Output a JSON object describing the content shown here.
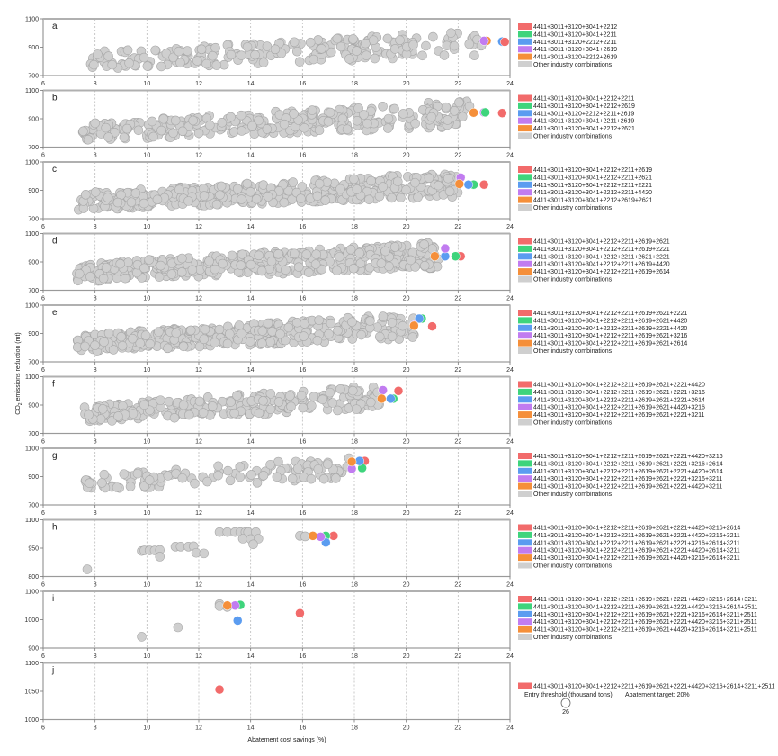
{
  "figure": {
    "xlabel": "Abatement cost savings (%)",
    "ylabel_prefix": "CO",
    "ylabel_sub": "2",
    "ylabel_suffix": " emissions reduction (mt)",
    "size_legend": {
      "title": "Entry threshold (thousand tons)",
      "value_label": "26"
    },
    "target_label": "Abatement target: 20%",
    "other_label": "Other industry combinations"
  },
  "colors": {
    "red": "#f26b6b",
    "green": "#3ed47c",
    "blue": "#5b9cf0",
    "purple": "#c17cf0",
    "orange": "#f58f3a",
    "other": "#cfcfcf"
  },
  "chart_data": [
    {
      "type": "scatter",
      "panel": "a",
      "xlim": [
        6,
        24
      ],
      "ylim": [
        700,
        1100
      ],
      "xticks": [
        6,
        8,
        10,
        12,
        14,
        16,
        18,
        20,
        22,
        24
      ],
      "yticks": [
        700,
        900,
        1100
      ],
      "legend": [
        {
          "label": "4411+3011+3120+3041+2212",
          "color": "red"
        },
        {
          "label": "4411+3011+3120+3041+2211",
          "color": "green"
        },
        {
          "label": "4411+3011+3120+2212+2211",
          "color": "blue"
        },
        {
          "label": "4411+3011+3120+3041+2619",
          "color": "purple"
        },
        {
          "label": "4411+3011+3120+2212+2619",
          "color": "orange"
        }
      ],
      "highlighted": [
        {
          "x": 23.7,
          "y": 940,
          "color": "green"
        },
        {
          "x": 23.1,
          "y": 945,
          "color": "orange"
        },
        {
          "x": 23.7,
          "y": 940,
          "color": "blue"
        },
        {
          "x": 23.0,
          "y": 945,
          "color": "purple"
        },
        {
          "x": 23.8,
          "y": 938,
          "color": "red"
        }
      ],
      "other_cloud": {
        "x_range": [
          7.7,
          23.0
        ],
        "y_range": [
          740,
          1020
        ],
        "count": 220
      }
    },
    {
      "type": "scatter",
      "panel": "b",
      "xlim": [
        6,
        24
      ],
      "ylim": [
        700,
        1100
      ],
      "xticks": [
        6,
        8,
        10,
        12,
        14,
        16,
        18,
        20,
        22,
        24
      ],
      "yticks": [
        700,
        900,
        1100
      ],
      "legend": [
        {
          "label": "4411+3011+3120+3041+2212+2211",
          "color": "red"
        },
        {
          "label": "4411+3011+3120+3041+2212+2619",
          "color": "green"
        },
        {
          "label": "4411+3011+3120+2212+2211+2619",
          "color": "blue"
        },
        {
          "label": "4411+3011+3120+3041+2211+2619",
          "color": "purple"
        },
        {
          "label": "4411+3011+3120+3041+2212+2621",
          "color": "orange"
        }
      ],
      "highlighted": [
        {
          "x": 23.7,
          "y": 940,
          "color": "red"
        },
        {
          "x": 23.0,
          "y": 945,
          "color": "blue"
        },
        {
          "x": 23.0,
          "y": 945,
          "color": "purple"
        },
        {
          "x": 23.05,
          "y": 945,
          "color": "green"
        },
        {
          "x": 22.6,
          "y": 943,
          "color": "orange"
        }
      ],
      "other_cloud": {
        "x_range": [
          7.5,
          22.5
        ],
        "y_range": [
          745,
          1030
        ],
        "count": 320
      }
    },
    {
      "type": "scatter",
      "panel": "c",
      "xlim": [
        6,
        24
      ],
      "ylim": [
        700,
        1100
      ],
      "xticks": [
        6,
        8,
        10,
        12,
        14,
        16,
        18,
        20,
        22,
        24
      ],
      "yticks": [
        700,
        900,
        1100
      ],
      "legend": [
        {
          "label": "4411+3011+3120+3041+2212+2211+2619",
          "color": "red"
        },
        {
          "label": "4411+3011+3120+3041+2212+2211+2621",
          "color": "green"
        },
        {
          "label": "4411+3011+3120+3041+2212+2211+2221",
          "color": "blue"
        },
        {
          "label": "4411+3011+3120+3041+2212+2211+4420",
          "color": "purple"
        },
        {
          "label": "4411+3011+3120+3041+2212+2619+2621",
          "color": "orange"
        }
      ],
      "highlighted": [
        {
          "x": 23.0,
          "y": 940,
          "color": "red"
        },
        {
          "x": 22.6,
          "y": 940,
          "color": "green"
        },
        {
          "x": 22.4,
          "y": 940,
          "color": "blue"
        },
        {
          "x": 22.1,
          "y": 990,
          "color": "purple"
        },
        {
          "x": 22.05,
          "y": 945,
          "color": "orange"
        }
      ],
      "other_cloud": {
        "x_range": [
          7.3,
          22.0
        ],
        "y_range": [
          760,
          1030
        ],
        "count": 420
      }
    },
    {
      "type": "scatter",
      "panel": "d",
      "xlim": [
        6,
        24
      ],
      "ylim": [
        700,
        1100
      ],
      "xticks": [
        6,
        8,
        10,
        12,
        14,
        16,
        18,
        20,
        22,
        24
      ],
      "yticks": [
        700,
        900,
        1100
      ],
      "legend": [
        {
          "label": "4411+3011+3120+3041+2212+2211+2619+2621",
          "color": "red"
        },
        {
          "label": "4411+3011+3120+3041+2212+2211+2619+2221",
          "color": "green"
        },
        {
          "label": "4411+3011+3120+3041+2212+2211+2621+2221",
          "color": "blue"
        },
        {
          "label": "4411+3011+3120+3041+2212+2211+2619+4420",
          "color": "purple"
        },
        {
          "label": "4411+3011+3120+3041+2212+2211+2619+2614",
          "color": "orange"
        }
      ],
      "highlighted": [
        {
          "x": 22.1,
          "y": 940,
          "color": "red"
        },
        {
          "x": 21.9,
          "y": 940,
          "color": "green"
        },
        {
          "x": 21.5,
          "y": 940,
          "color": "blue"
        },
        {
          "x": 21.5,
          "y": 995,
          "color": "purple"
        },
        {
          "x": 21.1,
          "y": 940,
          "color": "orange"
        }
      ],
      "other_cloud": {
        "x_range": [
          7.3,
          21.3
        ],
        "y_range": [
          760,
          1040
        ],
        "count": 420
      }
    },
    {
      "type": "scatter",
      "panel": "e",
      "xlim": [
        6,
        24
      ],
      "ylim": [
        700,
        1100
      ],
      "xticks": [
        6,
        8,
        10,
        12,
        14,
        16,
        18,
        20,
        22,
        24
      ],
      "yticks": [
        700,
        900,
        1100
      ],
      "legend": [
        {
          "label": "4411+3011+3120+3041+2212+2211+2619+2621+2221",
          "color": "red"
        },
        {
          "label": "4411+3011+3120+3041+2212+2211+2619+2621+4420",
          "color": "green"
        },
        {
          "label": "4411+3011+3120+3041+2212+2211+2619+2221+4420",
          "color": "blue"
        },
        {
          "label": "4411+3011+3120+3041+2212+2211+2619+2621+3216",
          "color": "purple"
        },
        {
          "label": "4411+3011+3120+3041+2212+2211+2619+2621+2614",
          "color": "orange"
        }
      ],
      "highlighted": [
        {
          "x": 21.0,
          "y": 950,
          "color": "red"
        },
        {
          "x": 20.6,
          "y": 1005,
          "color": "green"
        },
        {
          "x": 20.5,
          "y": 1005,
          "color": "blue"
        },
        {
          "x": 20.3,
          "y": 960,
          "color": "purple"
        },
        {
          "x": 20.3,
          "y": 955,
          "color": "orange"
        }
      ],
      "other_cloud": {
        "x_range": [
          7.3,
          20.3
        ],
        "y_range": [
          770,
          1040
        ],
        "count": 360
      }
    },
    {
      "type": "scatter",
      "panel": "f",
      "xlim": [
        6,
        24
      ],
      "ylim": [
        700,
        1100
      ],
      "xticks": [
        6,
        8,
        10,
        12,
        14,
        16,
        18,
        20,
        22,
        24
      ],
      "yticks": [
        700,
        900,
        1100
      ],
      "legend": [
        {
          "label": "4411+3011+3120+3041+2212+2211+2619+2621+2221+4420",
          "color": "red"
        },
        {
          "label": "4411+3011+3120+3041+2212+2211+2619+2621+2221+3216",
          "color": "green"
        },
        {
          "label": "4411+3011+3120+3041+2212+2211+2619+2621+2221+2614",
          "color": "blue"
        },
        {
          "label": "4411+3011+3120+3041+2212+2211+2619+2621+4420+3216",
          "color": "purple"
        },
        {
          "label": "4411+3011+3120+3041+2212+2211+2619+2621+2221+3211",
          "color": "orange"
        }
      ],
      "highlighted": [
        {
          "x": 19.7,
          "y": 1000,
          "color": "red"
        },
        {
          "x": 19.5,
          "y": 945,
          "color": "green"
        },
        {
          "x": 19.4,
          "y": 945,
          "color": "blue"
        },
        {
          "x": 19.1,
          "y": 1005,
          "color": "purple"
        },
        {
          "x": 19.05,
          "y": 945,
          "color": "orange"
        }
      ],
      "other_cloud": {
        "x_range": [
          7.5,
          19.0
        ],
        "y_range": [
          780,
          1040
        ],
        "count": 250
      }
    },
    {
      "type": "scatter",
      "panel": "g",
      "xlim": [
        6,
        24
      ],
      "ylim": [
        700,
        1100
      ],
      "xticks": [
        6,
        8,
        10,
        12,
        14,
        16,
        18,
        20,
        22,
        24
      ],
      "yticks": [
        700,
        900,
        1100
      ],
      "legend": [
        {
          "label": "4411+3011+3120+3041+2212+2211+2619+2621+2221+4420+3216",
          "color": "red"
        },
        {
          "label": "4411+3011+3120+3041+2212+2211+2619+2621+2221+3216+2614",
          "color": "green"
        },
        {
          "label": "4411+3011+3120+3041+2212+2211+2619+2621+2221+4420+2614",
          "color": "blue"
        },
        {
          "label": "4411+3011+3120+3041+2212+2211+2619+2621+2221+3216+3211",
          "color": "purple"
        },
        {
          "label": "4411+3011+3120+3041+2212+2211+2619+2621+2221+4420+3211",
          "color": "orange"
        }
      ],
      "highlighted": [
        {
          "x": 18.4,
          "y": 1010,
          "color": "red"
        },
        {
          "x": 18.3,
          "y": 960,
          "color": "green"
        },
        {
          "x": 18.2,
          "y": 1010,
          "color": "blue"
        },
        {
          "x": 17.9,
          "y": 955,
          "color": "purple"
        },
        {
          "x": 17.9,
          "y": 1005,
          "color": "orange"
        }
      ],
      "other_cloud": {
        "x_range": [
          7.6,
          17.8
        ],
        "y_range": [
          800,
          1040
        ],
        "count": 120
      }
    },
    {
      "type": "scatter",
      "panel": "h",
      "xlim": [
        6,
        24
      ],
      "ylim": [
        800,
        1100
      ],
      "xticks": [
        6,
        8,
        10,
        12,
        14,
        16,
        18,
        20,
        22,
        24
      ],
      "yticks": [
        800,
        950,
        1100
      ],
      "legend": [
        {
          "label": "4411+3011+3120+3041+2212+2211+2619+2621+2221+4420+3216+2614",
          "color": "red"
        },
        {
          "label": "4411+3011+3120+3041+2212+2211+2619+2621+2221+4420+3216+3211",
          "color": "green"
        },
        {
          "label": "4411+3011+3120+3041+2212+2211+2619+2621+2221+3216+2614+3211",
          "color": "blue"
        },
        {
          "label": "4411+3011+3120+3041+2212+2211+2619+2621+2221+4420+2614+3211",
          "color": "purple"
        },
        {
          "label": "4411+3011+3120+3041+2212+2211+2619+2621+4420+3216+2614+3211",
          "color": "orange"
        }
      ],
      "highlighted": [
        {
          "x": 17.2,
          "y": 1015,
          "color": "red"
        },
        {
          "x": 16.9,
          "y": 1015,
          "color": "green"
        },
        {
          "x": 16.9,
          "y": 980,
          "color": "blue"
        },
        {
          "x": 16.7,
          "y": 1010,
          "color": "purple"
        },
        {
          "x": 16.4,
          "y": 1015,
          "color": "orange"
        }
      ],
      "other_points": [
        [
          7.7,
          838
        ],
        [
          9.8,
          935
        ],
        [
          9.9,
          938
        ],
        [
          10.1,
          938
        ],
        [
          10.3,
          938
        ],
        [
          10.5,
          940
        ],
        [
          10.5,
          905
        ],
        [
          11.1,
          958
        ],
        [
          11.3,
          958
        ],
        [
          11.6,
          958
        ],
        [
          11.8,
          960
        ],
        [
          11.9,
          925
        ],
        [
          12.2,
          922
        ],
        [
          12.8,
          1035
        ],
        [
          13.1,
          1035
        ],
        [
          13.4,
          1035
        ],
        [
          13.6,
          1035
        ],
        [
          13.8,
          1035
        ],
        [
          13.9,
          1035
        ],
        [
          14.2,
          1035
        ],
        [
          13.7,
          1000
        ],
        [
          14.0,
          998
        ],
        [
          14.3,
          1000
        ],
        [
          14.1,
          970
        ],
        [
          15.9,
          1015
        ],
        [
          16.1,
          1012
        ]
      ]
    },
    {
      "type": "scatter",
      "panel": "i",
      "xlim": [
        6,
        24
      ],
      "ylim": [
        900,
        1100
      ],
      "xticks": [
        6,
        8,
        10,
        12,
        14,
        16,
        18,
        20,
        22,
        24
      ],
      "yticks": [
        900,
        1000,
        1100
      ],
      "legend": [
        {
          "label": "4411+3011+3120+3041+2212+2211+2619+2621+2221+4420+3216+2614+3211",
          "color": "red"
        },
        {
          "label": "4411+3011+3120+3041+2212+2211+2619+2621+2221+4420+3216+2614+2511",
          "color": "green"
        },
        {
          "label": "4411+3011+3120+3041+2212+2211+2619+2621+2221+3216+2614+3211+2511",
          "color": "blue"
        },
        {
          "label": "4411+3011+3120+3041+2212+2211+2619+2621+2221+4420+3216+3211+2511",
          "color": "purple"
        },
        {
          "label": "4411+3011+3120+3041+2212+2211+2619+2621+4420+3216+2614+3211+2511",
          "color": "orange"
        }
      ],
      "highlighted": [
        {
          "x": 15.9,
          "y": 1023,
          "color": "red"
        },
        {
          "x": 13.6,
          "y": 1052,
          "color": "green"
        },
        {
          "x": 13.5,
          "y": 997,
          "color": "blue"
        },
        {
          "x": 13.4,
          "y": 1050,
          "color": "purple"
        },
        {
          "x": 13.1,
          "y": 1050,
          "color": "orange"
        }
      ],
      "other_points": [
        [
          9.8,
          940
        ],
        [
          11.2,
          973
        ],
        [
          12.8,
          1055
        ],
        [
          12.8,
          1048
        ],
        [
          13.1,
          1045
        ]
      ]
    },
    {
      "type": "scatter",
      "panel": "j",
      "xlim": [
        6,
        24
      ],
      "ylim": [
        1000,
        1100
      ],
      "xticks": [
        6,
        8,
        10,
        12,
        14,
        16,
        18,
        20,
        22,
        24
      ],
      "yticks": [
        1000,
        1050,
        1100
      ],
      "legend": [
        {
          "label": "4411+3011+3120+3041+2212+2211+2619+2621+2221+4420+3216+2614+3211+2511",
          "color": "red"
        }
      ],
      "highlighted": [
        {
          "x": 12.8,
          "y": 1053,
          "color": "red"
        }
      ],
      "other_points": [],
      "no_other_legend": true
    }
  ]
}
